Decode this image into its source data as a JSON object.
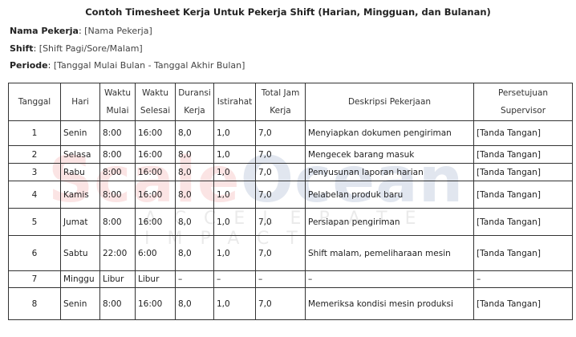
{
  "title": "Contoh Timesheet Kerja Untuk Pekerja Shift (Harian, Mingguan, dan Bulanan)",
  "meta": [
    {
      "label": "Nama Pekerja",
      "value": "[Nama Pekerja]"
    },
    {
      "label": "Shift",
      "value": "[Shift Pagi/Sore/Malam]"
    },
    {
      "label": "Periode",
      "value": "[Tanggal Mulai Bulan - Tanggal Akhir Bulan]"
    }
  ],
  "watermark": {
    "brand_a": "Scale",
    "brand_b": "Ocean",
    "tagline": "ACCELERATE IMPACT"
  },
  "table": {
    "headers": [
      [
        "Tanggal"
      ],
      [
        "Hari"
      ],
      [
        "Waktu",
        "Mulai"
      ],
      [
        "Waktu",
        "Selesai"
      ],
      [
        "Duransi",
        "Kerja"
      ],
      [
        "Istirahat"
      ],
      [
        "Total Jam",
        "Kerja"
      ],
      [
        "Deskripsi Pekerjaan"
      ],
      [
        "Persetujuan",
        "Supervisor"
      ]
    ],
    "rows": [
      [
        "1",
        "Senin",
        "8:00",
        "16:00",
        "8,0",
        "1,0",
        "7,0",
        "Menyiapkan dokumen pengiriman",
        "[Tanda Tangan]"
      ],
      [
        "2",
        "Selasa",
        "8:00",
        "16:00",
        "8,0",
        "1,0",
        "7,0",
        "Mengecek barang masuk",
        "[Tanda Tangan]"
      ],
      [
        "3",
        "Rabu",
        "8:00",
        "16:00",
        "8,0",
        "1,0",
        "7,0",
        "Penyusunan laporan harian",
        "[Tanda Tangan]"
      ],
      [
        "4",
        "Kamis",
        "8:00",
        "16:00",
        "8,0",
        "1,0",
        "7,0",
        "Pelabelan produk baru",
        "[Tanda Tangan]"
      ],
      [
        "5",
        "Jumat",
        "8:00",
        "16:00",
        "8,0",
        "1,0",
        "7,0",
        "Persiapan pengiriman",
        "[Tanda Tangan]"
      ],
      [
        "6",
        "Sabtu",
        "22:00",
        "6:00",
        "8,0",
        "1,0",
        "7,0",
        "Shift malam, pemeliharaan mesin",
        "[Tanda Tangan]"
      ],
      [
        "7",
        "Minggu",
        "Libur",
        "Libur",
        "–",
        "–",
        "–",
        "–",
        "–"
      ],
      [
        "8",
        "Senin",
        "8:00",
        "16:00",
        "8,0",
        "1,0",
        "7,0",
        "Memeriksa kondisi mesin produksi",
        "[Tanda Tangan]"
      ]
    ]
  }
}
